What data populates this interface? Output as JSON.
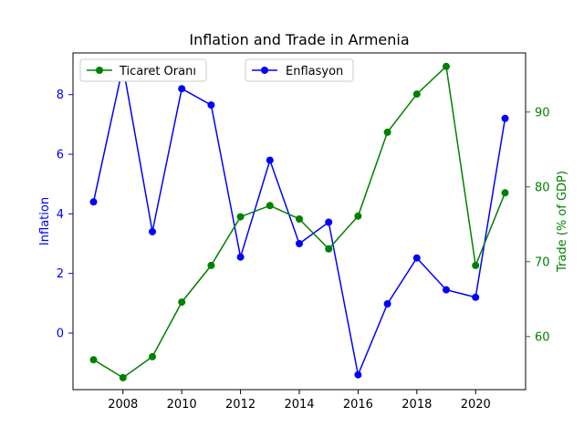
{
  "chart_data": {
    "type": "line",
    "title": "Inflation and Trade in Armenia",
    "x": [
      2007,
      2008,
      2009,
      2010,
      2011,
      2012,
      2013,
      2014,
      2015,
      2016,
      2017,
      2018,
      2019,
      2020,
      2021
    ],
    "x_ticks": [
      2008,
      2010,
      2012,
      2014,
      2016,
      2018,
      2020
    ],
    "xlim": [
      2006.3,
      2021.7
    ],
    "y_left": {
      "label": "Inflation",
      "color": "#0000ff",
      "ticks": [
        0,
        2,
        4,
        6,
        8
      ],
      "ylim": [
        -1.9,
        9.4
      ]
    },
    "y_right": {
      "label": "Trade (% of GDP)",
      "color": "#008000",
      "ticks": [
        60,
        70,
        80,
        90
      ],
      "ylim": [
        52.9,
        97.9
      ]
    },
    "series": [
      {
        "name": "Enflasyon",
        "axis": "left",
        "color": "#0000ff",
        "values": [
          4.4,
          8.95,
          3.4,
          8.2,
          7.65,
          2.55,
          5.8,
          3.0,
          3.72,
          -1.4,
          0.98,
          2.52,
          1.45,
          1.2,
          7.2
        ]
      },
      {
        "name": "Ticaret Oranı",
        "axis": "right",
        "color": "#008000",
        "values": [
          56.9,
          54.5,
          57.3,
          64.6,
          69.5,
          76.0,
          77.5,
          75.7,
          71.7,
          76.1,
          87.3,
          92.4,
          96.1,
          69.5,
          79.2
        ]
      }
    ],
    "legend": {
      "left_entry": "Ticaret Oranı",
      "right_entry": "Enflasyon",
      "placement": "top"
    },
    "grid": false
  }
}
